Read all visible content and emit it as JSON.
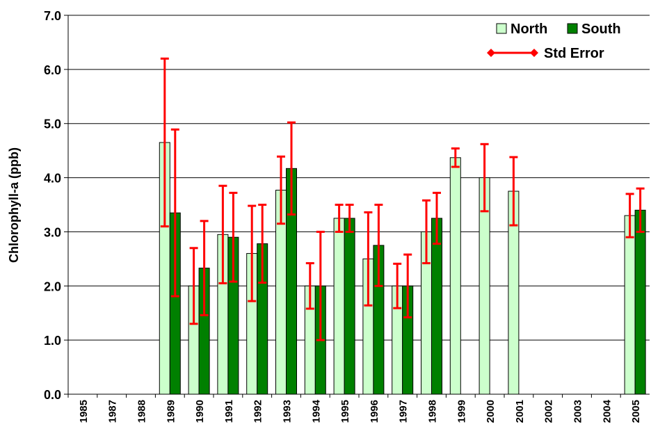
{
  "chart_data": {
    "type": "bar",
    "y_label": "Chlorophyll-a (ppb)",
    "categories": [
      "1985",
      "1987",
      "1988",
      "1989",
      "1990",
      "1991",
      "1992",
      "1993",
      "1994",
      "1995",
      "1996",
      "1997",
      "1998",
      "1999",
      "2000",
      "2001",
      "2002",
      "2003",
      "2004",
      "2005"
    ],
    "series": [
      {
        "name": "North",
        "color": "#ccffcc",
        "values": [
          null,
          null,
          null,
          4.65,
          2.0,
          2.95,
          2.6,
          3.77,
          2.0,
          3.25,
          2.5,
          2.0,
          3.0,
          4.37,
          4.0,
          3.75,
          null,
          null,
          null,
          3.3
        ],
        "errors": [
          null,
          null,
          null,
          1.55,
          0.7,
          0.9,
          0.88,
          0.62,
          0.42,
          0.25,
          0.86,
          0.41,
          0.58,
          0.17,
          0.62,
          0.63,
          null,
          null,
          null,
          0.4
        ]
      },
      {
        "name": "South",
        "color": "#008000",
        "values": [
          null,
          null,
          null,
          3.35,
          2.33,
          2.9,
          2.78,
          4.17,
          2.0,
          3.25,
          2.75,
          2.0,
          3.25,
          null,
          null,
          null,
          null,
          null,
          null,
          3.4
        ],
        "errors": [
          null,
          null,
          null,
          1.54,
          0.87,
          0.82,
          0.72,
          0.85,
          1.0,
          0.25,
          0.75,
          0.58,
          0.47,
          null,
          null,
          null,
          null,
          null,
          null,
          0.4
        ]
      }
    ],
    "error_name": "Std Error",
    "error_color": "#ff0000",
    "ylim": [
      0,
      7
    ],
    "yticks": [
      {
        "value": 0,
        "label": "0.0"
      },
      {
        "value": 1,
        "label": "1.0"
      },
      {
        "value": 2,
        "label": "2.0"
      },
      {
        "value": 3,
        "label": "3.0"
      },
      {
        "value": 4,
        "label": "4.0"
      },
      {
        "value": 5,
        "label": "5.0"
      },
      {
        "value": 6,
        "label": "6.0"
      },
      {
        "value": 7,
        "label": "7.0"
      }
    ],
    "grid": true,
    "legend": "top-right"
  }
}
